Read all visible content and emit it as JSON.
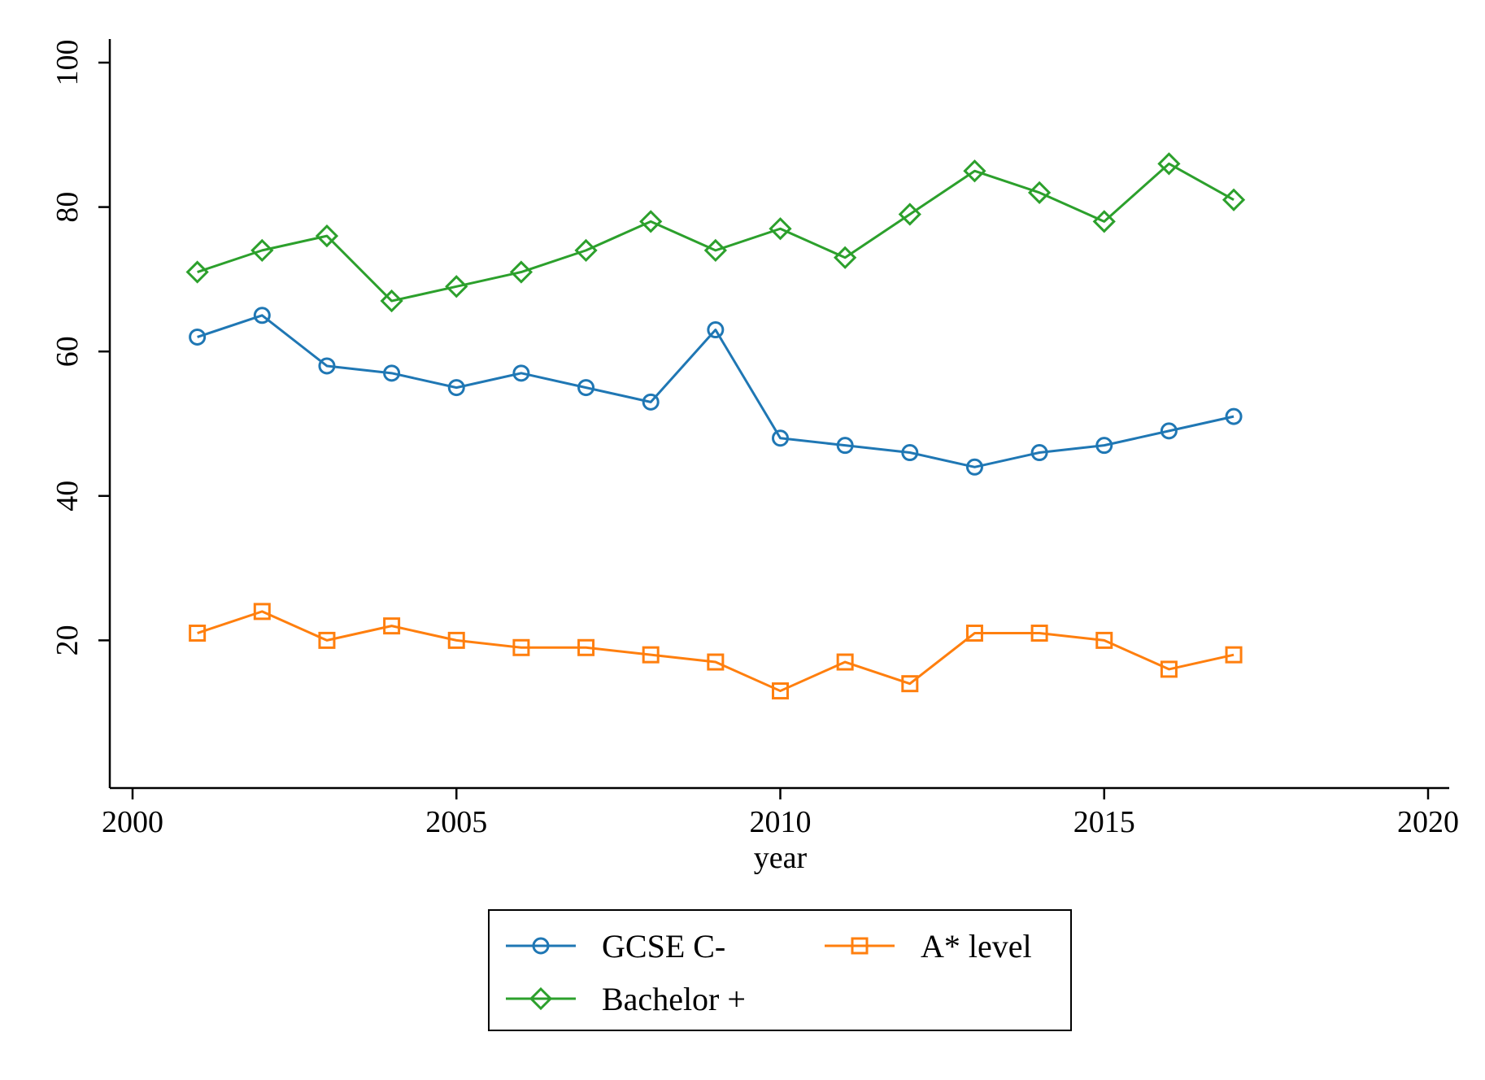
{
  "chart_data": {
    "type": "line",
    "title": "",
    "xlabel": "year",
    "ylabel": "",
    "xlim": [
      2000,
      2020
    ],
    "ylim": [
      0,
      100
    ],
    "x_ticks": [
      2000,
      2005,
      2010,
      2015,
      2020
    ],
    "y_ticks": [
      20,
      40,
      60,
      80,
      100
    ],
    "grid": false,
    "legend_position": "bottom",
    "x": [
      2001,
      2002,
      2003,
      2004,
      2005,
      2006,
      2007,
      2008,
      2009,
      2010,
      2011,
      2012,
      2013,
      2014,
      2015,
      2016,
      2017
    ],
    "series": [
      {
        "name": "GCSE C-",
        "color": "#1f77b4",
        "marker": "circle",
        "values": [
          62,
          65,
          58,
          57,
          55,
          57,
          55,
          53,
          63,
          48,
          47,
          46,
          44,
          46,
          47,
          49,
          51
        ]
      },
      {
        "name": "A* level",
        "color": "#ff7f0e",
        "marker": "square",
        "values": [
          21,
          24,
          20,
          22,
          20,
          19,
          19,
          18,
          17,
          13,
          17,
          14,
          21,
          21,
          20,
          16,
          18
        ]
      },
      {
        "name": "Bachelor +",
        "color": "#2ca02c",
        "marker": "diamond",
        "values": [
          71,
          74,
          76,
          67,
          69,
          71,
          74,
          78,
          74,
          77,
          73,
          79,
          85,
          82,
          78,
          86,
          81
        ]
      }
    ]
  }
}
